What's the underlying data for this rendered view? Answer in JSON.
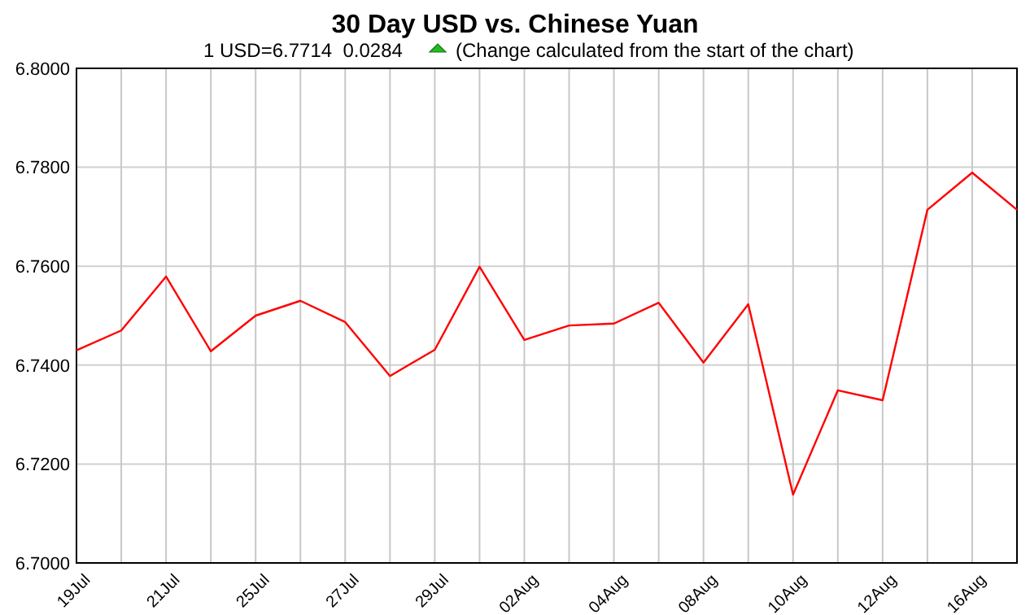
{
  "chart_data": {
    "type": "line",
    "title": "30 Day USD vs. Chinese Yuan",
    "subtitle": "1 USD=6.7714  0.0284",
    "annotations": [
      "(Change calculated from the start of the chart)"
    ],
    "categories": [
      "19Jul",
      null,
      "21Jul",
      null,
      "25Jul",
      null,
      "27Jul",
      null,
      "29Jul",
      null,
      "02Aug",
      null,
      "04Aug",
      null,
      "08Aug",
      null,
      "10Aug",
      null,
      "12Aug",
      null,
      "16Aug",
      null
    ],
    "series": [
      {
        "color": "#ff0000",
        "values": [
          6.743,
          6.747,
          6.7579,
          6.7428,
          6.75,
          6.753,
          6.7487,
          6.7378,
          6.7431,
          6.7599,
          6.7451,
          6.748,
          6.7484,
          6.7526,
          6.7405,
          6.7523,
          6.7138,
          6.7349,
          6.7329,
          6.7714,
          6.7789,
          6.7714
        ]
      }
    ],
    "ylim": [
      6.7,
      6.8
    ],
    "yticks": [
      {
        "value": 6.7,
        "label": "6.7000"
      },
      {
        "value": 6.72,
        "label": "6.7200"
      },
      {
        "value": 6.74,
        "label": "6.7400"
      },
      {
        "value": 6.76,
        "label": "6.7600"
      },
      {
        "value": 6.78,
        "label": "6.7800"
      },
      {
        "value": 6.8,
        "label": "6.8000"
      }
    ],
    "grid": true,
    "marker": "none",
    "line_style": "solid"
  }
}
